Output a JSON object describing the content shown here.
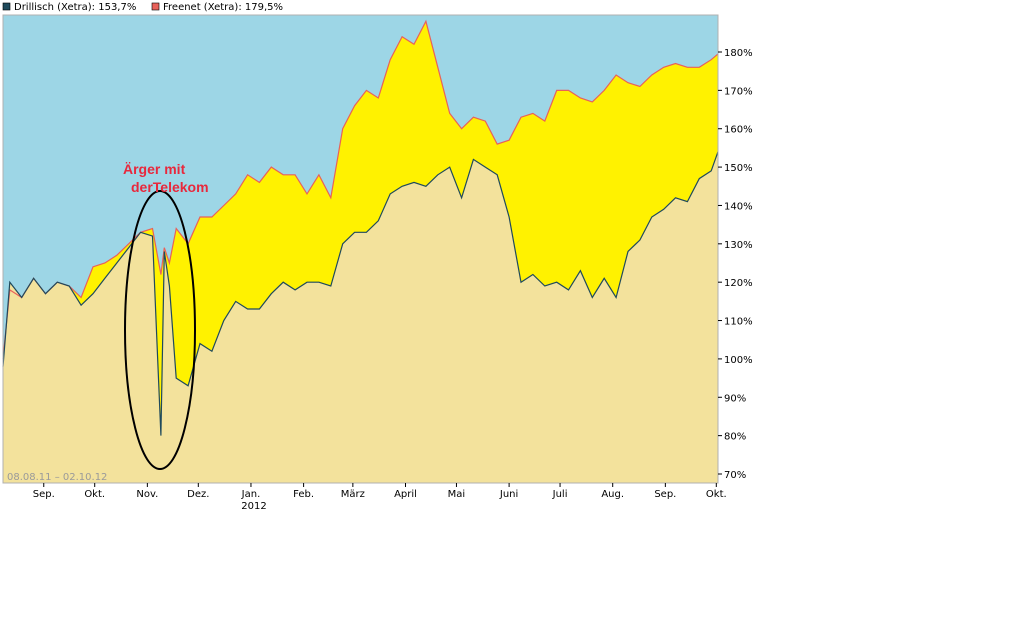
{
  "chart_data": {
    "type": "area",
    "date_range": "08.08.11 – 02.10.12",
    "ylim": [
      70,
      180
    ],
    "y_unit": "%",
    "y_ticks": [
      "70%",
      "80%",
      "90%",
      "100%",
      "110%",
      "120%",
      "130%",
      "140%",
      "150%",
      "160%",
      "170%",
      "180%"
    ],
    "x_tick_labels": [
      "Sep.",
      "Okt.",
      "Nov.",
      "Dez.",
      "Jan.",
      "Feb.",
      "März",
      "April",
      "Mai",
      "Juni",
      "Juli",
      "Aug.",
      "Sep.",
      "Okt."
    ],
    "x_year_label": "2012",
    "grid": false,
    "legend_position": "top-left",
    "colors": {
      "plot_background": "#9dd6e6",
      "drillisch_fill": "#f3e29c",
      "drillisch_line": "#1f4a5c",
      "freenet_gap_fill": "#fff200",
      "freenet_line": "#e8615a",
      "annotation": "#e8283c"
    },
    "series": [
      {
        "name": "Drillisch (Xetra)",
        "legend_label": "Drillisch (Xetra): 153,7%",
        "color": "#1f4a5c",
        "x": [
          "2011-08-08",
          "2011-08-12",
          "2011-08-19",
          "2011-08-26",
          "2011-09-02",
          "2011-09-09",
          "2011-09-16",
          "2011-09-23",
          "2011-09-30",
          "2011-10-07",
          "2011-10-14",
          "2011-10-21",
          "2011-10-28",
          "2011-11-04",
          "2011-11-09",
          "2011-11-11",
          "2011-11-14",
          "2011-11-18",
          "2011-11-25",
          "2011-12-02",
          "2011-12-09",
          "2011-12-16",
          "2011-12-23",
          "2011-12-30",
          "2012-01-06",
          "2012-01-13",
          "2012-01-20",
          "2012-01-27",
          "2012-02-03",
          "2012-02-10",
          "2012-02-17",
          "2012-02-24",
          "2012-03-02",
          "2012-03-09",
          "2012-03-16",
          "2012-03-23",
          "2012-03-30",
          "2012-04-06",
          "2012-04-13",
          "2012-04-20",
          "2012-04-27",
          "2012-05-04",
          "2012-05-11",
          "2012-05-18",
          "2012-05-25",
          "2012-06-01",
          "2012-06-08",
          "2012-06-15",
          "2012-06-22",
          "2012-06-29",
          "2012-07-06",
          "2012-07-13",
          "2012-07-20",
          "2012-07-27",
          "2012-08-03",
          "2012-08-10",
          "2012-08-17",
          "2012-08-24",
          "2012-08-31",
          "2012-09-07",
          "2012-09-14",
          "2012-09-21",
          "2012-09-28",
          "2012-10-02"
        ],
        "values": [
          98,
          120,
          116,
          121,
          117,
          120,
          119,
          114,
          117,
          121,
          125,
          129,
          133,
          132,
          80,
          128,
          119,
          95,
          93,
          104,
          102,
          110,
          115,
          113,
          113,
          117,
          120,
          118,
          120,
          120,
          119,
          130,
          133,
          133,
          136,
          143,
          145,
          146,
          145,
          148,
          150,
          142,
          152,
          150,
          148,
          137,
          120,
          122,
          119,
          120,
          118,
          123,
          116,
          121,
          116,
          128,
          131,
          137,
          139,
          142,
          141,
          147,
          149,
          154
        ]
      },
      {
        "name": "Freenet (Xetra)",
        "legend_label": "Freenet (Xetra): 179,5%",
        "color": "#e8615a",
        "x": [
          "2011-08-08",
          "2011-08-12",
          "2011-08-19",
          "2011-08-26",
          "2011-09-02",
          "2011-09-09",
          "2011-09-16",
          "2011-09-23",
          "2011-09-30",
          "2011-10-07",
          "2011-10-14",
          "2011-10-21",
          "2011-10-28",
          "2011-11-04",
          "2011-11-09",
          "2011-11-11",
          "2011-11-14",
          "2011-11-18",
          "2011-11-25",
          "2011-12-02",
          "2011-12-09",
          "2011-12-16",
          "2011-12-23",
          "2011-12-30",
          "2012-01-06",
          "2012-01-13",
          "2012-01-20",
          "2012-01-27",
          "2012-02-03",
          "2012-02-10",
          "2012-02-17",
          "2012-02-24",
          "2012-03-02",
          "2012-03-09",
          "2012-03-16",
          "2012-03-23",
          "2012-03-30",
          "2012-04-06",
          "2012-04-13",
          "2012-04-20",
          "2012-04-27",
          "2012-05-04",
          "2012-05-11",
          "2012-05-18",
          "2012-05-25",
          "2012-06-01",
          "2012-06-08",
          "2012-06-15",
          "2012-06-22",
          "2012-06-29",
          "2012-07-06",
          "2012-07-13",
          "2012-07-20",
          "2012-07-27",
          "2012-08-03",
          "2012-08-10",
          "2012-08-17",
          "2012-08-24",
          "2012-08-31",
          "2012-09-07",
          "2012-09-14",
          "2012-09-21",
          "2012-09-28",
          "2012-10-02"
        ],
        "values": [
          100,
          118,
          116,
          121,
          117,
          120,
          119,
          116,
          124,
          125,
          127,
          130,
          133,
          134,
          122,
          129,
          125,
          134,
          130,
          137,
          137,
          140,
          143,
          148,
          146,
          150,
          148,
          148,
          143,
          148,
          142,
          160,
          166,
          170,
          168,
          178,
          184,
          182,
          188,
          176,
          164,
          160,
          163,
          162,
          156,
          157,
          163,
          164,
          162,
          170,
          170,
          168,
          167,
          170,
          174,
          172,
          171,
          174,
          176,
          177,
          176,
          176,
          178,
          179.5
        ]
      }
    ],
    "annotations": [
      {
        "text_line1": "Ärger mit",
        "text_line2": "derTelekom"
      }
    ]
  }
}
